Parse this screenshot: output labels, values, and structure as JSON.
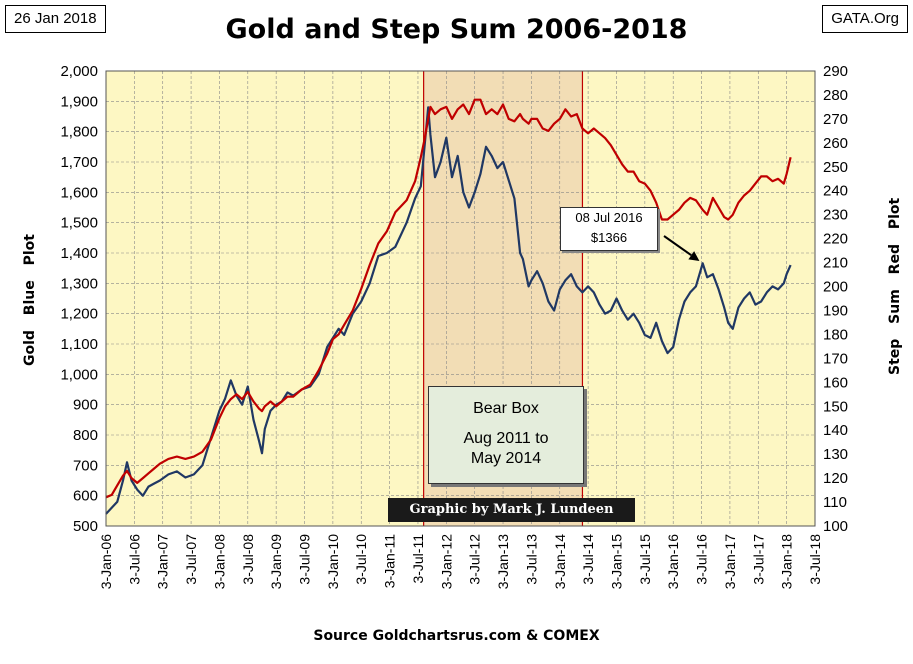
{
  "header": {
    "date": "26 Jan 2018",
    "site": "GATA.Org",
    "title": "Gold and Step Sum 2006-2018"
  },
  "source": "Source Goldchartsrus.com & COMEX",
  "credit": "Graphic by Mark J. Lundeen",
  "bear_box": {
    "label": "Bear Box",
    "range_line1": "Aug 2011 to",
    "range_line2": "May 2014"
  },
  "callout": {
    "date": "08 Jul 2016",
    "price": "$1366"
  },
  "chart_data": {
    "type": "line",
    "title": "Gold and Step Sum 2006-2018",
    "colors": {
      "plot_bg": "#fdf7c3",
      "bear_box_bg": "#f2ddb5",
      "gold": "#203864",
      "step_sum": "#c00000",
      "bear_line": "#c00000"
    },
    "x_range": [
      2006.0,
      2018.5
    ],
    "x_tick_labels": [
      "3-Jan-06",
      "3-Jul-06",
      "3-Jan-07",
      "3-Jul-07",
      "3-Jan-08",
      "3-Jul-08",
      "3-Jan-09",
      "3-Jul-09",
      "3-Jan-10",
      "3-Jul-10",
      "3-Jan-11",
      "3-Jul-11",
      "3-Jan-12",
      "3-Jul-12",
      "3-Jan-13",
      "3-Jul-13",
      "3-Jan-14",
      "3-Jul-14",
      "3-Jan-15",
      "3-Jul-15",
      "3-Jan-16",
      "3-Jul-16",
      "3-Jan-17",
      "3-Jul-17",
      "3-Jan-18",
      "3-Jul-18"
    ],
    "left_axis": {
      "label": "Gold Blue Plot",
      "ylim": [
        500,
        2000
      ],
      "tick_labels": [
        "500",
        "600",
        "700",
        "800",
        "900",
        "1,000",
        "1,100",
        "1,200",
        "1,300",
        "1,400",
        "1,500",
        "1,600",
        "1,700",
        "1,800",
        "1,900",
        "2,000"
      ]
    },
    "right_axis": {
      "label": "Step Sum Red Plot",
      "ylim": [
        100,
        290
      ],
      "tick_labels": [
        "100",
        "110",
        "120",
        "130",
        "140",
        "150",
        "160",
        "170",
        "180",
        "190",
        "200",
        "210",
        "220",
        "230",
        "240",
        "250",
        "260",
        "270",
        "280",
        "290"
      ]
    },
    "bear_box_range": [
      2011.6,
      2014.4
    ],
    "annotation": {
      "x": 2016.52,
      "y": 1366,
      "text": "08 Jul 2016 $1366"
    },
    "series": [
      {
        "name": "Gold",
        "axis": "left",
        "x": [
          2006.0,
          2006.1,
          2006.2,
          2006.3,
          2006.37,
          2006.45,
          2006.55,
          2006.65,
          2006.75,
          2006.85,
          2006.95,
          2007.1,
          2007.25,
          2007.4,
          2007.55,
          2007.7,
          2007.85,
          2008.0,
          2008.1,
          2008.2,
          2008.3,
          2008.4,
          2008.5,
          2008.6,
          2008.7,
          2008.75,
          2008.8,
          2008.9,
          2009.0,
          2009.1,
          2009.2,
          2009.3,
          2009.45,
          2009.6,
          2009.75,
          2009.9,
          2010.0,
          2010.1,
          2010.2,
          2010.35,
          2010.5,
          2010.65,
          2010.8,
          2010.95,
          2011.1,
          2011.3,
          2011.45,
          2011.55,
          2011.62,
          2011.68,
          2011.72,
          2011.8,
          2011.9,
          2012.0,
          2012.1,
          2012.2,
          2012.3,
          2012.4,
          2012.5,
          2012.6,
          2012.7,
          2012.8,
          2012.9,
          2013.0,
          2013.1,
          2013.2,
          2013.3,
          2013.35,
          2013.45,
          2013.5,
          2013.6,
          2013.7,
          2013.8,
          2013.9,
          2014.0,
          2014.1,
          2014.2,
          2014.3,
          2014.4,
          2014.5,
          2014.6,
          2014.7,
          2014.8,
          2014.9,
          2015.0,
          2015.1,
          2015.2,
          2015.3,
          2015.4,
          2015.5,
          2015.6,
          2015.7,
          2015.8,
          2015.9,
          2016.0,
          2016.1,
          2016.2,
          2016.3,
          2016.4,
          2016.52,
          2016.6,
          2016.7,
          2016.8,
          2016.9,
          2016.97,
          2017.05,
          2017.15,
          2017.25,
          2017.35,
          2017.45,
          2017.55,
          2017.65,
          2017.75,
          2017.85,
          2017.95,
          2018.0,
          2018.07
        ],
        "values": [
          540,
          560,
          580,
          650,
          710,
          650,
          620,
          600,
          630,
          640,
          650,
          670,
          680,
          660,
          670,
          700,
          790,
          880,
          920,
          980,
          930,
          900,
          960,
          850,
          780,
          740,
          820,
          880,
          900,
          910,
          940,
          930,
          950,
          960,
          1000,
          1090,
          1120,
          1150,
          1130,
          1200,
          1240,
          1300,
          1390,
          1400,
          1420,
          1500,
          1580,
          1620,
          1760,
          1880,
          1790,
          1650,
          1700,
          1780,
          1650,
          1720,
          1600,
          1550,
          1600,
          1660,
          1750,
          1720,
          1680,
          1700,
          1640,
          1580,
          1400,
          1380,
          1290,
          1310,
          1340,
          1300,
          1240,
          1210,
          1280,
          1310,
          1330,
          1290,
          1270,
          1290,
          1270,
          1230,
          1200,
          1210,
          1250,
          1210,
          1180,
          1200,
          1170,
          1130,
          1120,
          1170,
          1110,
          1070,
          1090,
          1180,
          1240,
          1270,
          1290,
          1366,
          1320,
          1330,
          1280,
          1220,
          1170,
          1150,
          1220,
          1250,
          1270,
          1230,
          1240,
          1270,
          1290,
          1280,
          1300,
          1330,
          1360
        ]
      },
      {
        "name": "Step Sum",
        "axis": "right",
        "x": [
          2006.0,
          2006.1,
          2006.2,
          2006.3,
          2006.37,
          2006.45,
          2006.55,
          2006.65,
          2006.75,
          2006.85,
          2006.95,
          2007.1,
          2007.25,
          2007.4,
          2007.55,
          2007.7,
          2007.85,
          2008.0,
          2008.1,
          2008.2,
          2008.3,
          2008.4,
          2008.5,
          2008.6,
          2008.7,
          2008.75,
          2008.8,
          2008.9,
          2009.0,
          2009.1,
          2009.2,
          2009.3,
          2009.45,
          2009.6,
          2009.75,
          2009.9,
          2010.0,
          2010.1,
          2010.2,
          2010.35,
          2010.5,
          2010.65,
          2010.8,
          2010.95,
          2011.1,
          2011.3,
          2011.45,
          2011.55,
          2011.62,
          2011.68,
          2011.72,
          2011.8,
          2011.9,
          2012.0,
          2012.1,
          2012.2,
          2012.3,
          2012.4,
          2012.5,
          2012.6,
          2012.7,
          2012.8,
          2012.9,
          2013.0,
          2013.1,
          2013.2,
          2013.3,
          2013.35,
          2013.45,
          2013.5,
          2013.6,
          2013.7,
          2013.8,
          2013.9,
          2014.0,
          2014.1,
          2014.2,
          2014.3,
          2014.4,
          2014.5,
          2014.6,
          2014.7,
          2014.8,
          2014.9,
          2015.0,
          2015.1,
          2015.2,
          2015.3,
          2015.4,
          2015.5,
          2015.6,
          2015.7,
          2015.8,
          2015.9,
          2016.0,
          2016.1,
          2016.2,
          2016.3,
          2016.4,
          2016.52,
          2016.6,
          2016.7,
          2016.8,
          2016.9,
          2016.97,
          2017.05,
          2017.15,
          2017.25,
          2017.35,
          2017.45,
          2017.55,
          2017.65,
          2017.75,
          2017.85,
          2017.95,
          2018.0,
          2018.07
        ],
        "values": [
          112,
          113,
          117,
          121,
          123,
          120,
          118,
          120,
          122,
          124,
          126,
          128,
          129,
          128,
          129,
          131,
          136,
          145,
          150,
          153,
          155,
          153,
          156,
          152,
          149,
          148,
          150,
          152,
          150,
          152,
          154,
          154,
          157,
          159,
          165,
          172,
          178,
          180,
          184,
          190,
          199,
          209,
          218,
          223,
          231,
          236,
          244,
          254,
          262,
          270,
          275,
          272,
          274,
          275,
          270,
          274,
          276,
          272,
          278,
          278,
          272,
          274,
          272,
          276,
          270,
          269,
          272,
          270,
          268,
          270,
          270,
          266,
          265,
          268,
          270,
          274,
          271,
          272,
          266,
          264,
          266,
          264,
          262,
          259,
          255,
          251,
          248,
          248,
          244,
          243,
          240,
          235,
          228,
          228,
          230,
          232,
          235,
          237,
          236,
          232,
          230,
          237,
          233,
          229,
          228,
          230,
          235,
          238,
          240,
          243,
          246,
          246,
          244,
          245,
          243,
          247,
          254
        ]
      }
    ]
  }
}
